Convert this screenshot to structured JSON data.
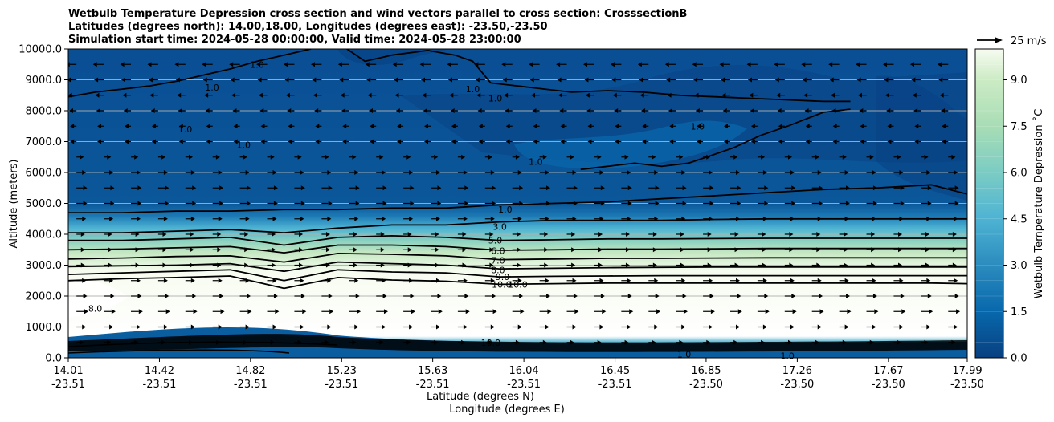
{
  "chart_data": {
    "type": "heatmap",
    "title_lines": [
      "Wetbulb Temperature Depression cross section and wind vectors parallel to cross section: CrosssectionB",
      "Latitudes (degrees north): 14.00,18.00, Longitudes (degrees east): -23.50,-23.50",
      "Simulation start time: 2024-05-28 00:00:00, Valid time: 2024-05-28 23:00:00"
    ],
    "ylabel": "Altitude (meters)",
    "xlabel_lines": [
      "Latitude (degrees N)",
      "Longitude (degrees E)"
    ],
    "ylim": [
      0,
      10000
    ],
    "y_ticks": [
      "0.0",
      "1000.0",
      "2000.0",
      "3000.0",
      "4000.0",
      "5000.0",
      "6000.0",
      "7000.0",
      "8000.0",
      "9000.0",
      "10000.0"
    ],
    "x_ticks": [
      {
        "lat": "14.01",
        "lon": "-23.51"
      },
      {
        "lat": "14.42",
        "lon": "-23.51"
      },
      {
        "lat": "14.82",
        "lon": "-23.51"
      },
      {
        "lat": "15.23",
        "lon": "-23.51"
      },
      {
        "lat": "15.63",
        "lon": "-23.51"
      },
      {
        "lat": "16.04",
        "lon": "-23.51"
      },
      {
        "lat": "16.45",
        "lon": "-23.51"
      },
      {
        "lat": "16.85",
        "lon": "-23.50"
      },
      {
        "lat": "17.26",
        "lon": "-23.50"
      },
      {
        "lat": "17.67",
        "lon": "-23.50"
      },
      {
        "lat": "17.99",
        "lon": "-23.50"
      }
    ],
    "colorbar": {
      "label": "Wetbulb Temperature Depression ˚C",
      "range": [
        0,
        10
      ],
      "levels": 20,
      "ticks": [
        "0.0",
        "1.5",
        "3.0",
        "4.5",
        "6.0",
        "7.5",
        "9.0"
      ],
      "low_color": "#084081",
      "high_color": "#f7fcf0"
    },
    "quiver_key": "25 m/s",
    "grid": "horizontal",
    "contour_labels": [
      {
        "text": "1.0",
        "x": 0.16,
        "y": 8750
      },
      {
        "text": "1.0",
        "x": 0.21,
        "y": 9500
      },
      {
        "text": "1.0",
        "x": 0.45,
        "y": 8700
      },
      {
        "text": "1.0",
        "x": 0.475,
        "y": 8400
      },
      {
        "text": "1.0",
        "x": 0.13,
        "y": 7400
      },
      {
        "text": "1.0",
        "x": 0.195,
        "y": 6900
      },
      {
        "text": "1.0",
        "x": 0.52,
        "y": 6350
      },
      {
        "text": "1.0",
        "x": 0.7,
        "y": 7500
      },
      {
        "text": "1.0",
        "x": 0.486,
        "y": 4800
      },
      {
        "text": "3.0",
        "x": 0.48,
        "y": 4250
      },
      {
        "text": "5.0",
        "x": 0.475,
        "y": 3800
      },
      {
        "text": "6.0",
        "x": 0.478,
        "y": 3470
      },
      {
        "text": "7.0",
        "x": 0.478,
        "y": 3150
      },
      {
        "text": "8.0",
        "x": 0.478,
        "y": 2850
      },
      {
        "text": "9.0",
        "x": 0.483,
        "y": 2620
      },
      {
        "text": "10.0",
        "x": 0.482,
        "y": 2380
      },
      {
        "text": "10.0",
        "x": 0.5,
        "y": 2380
      },
      {
        "text": "8.0",
        "x": 0.03,
        "y": 1600
      },
      {
        "text": "10.0",
        "x": 0.47,
        "y": 500
      },
      {
        "text": "1.0",
        "x": 0.685,
        "y": 120
      },
      {
        "text": "1.0",
        "x": 0.8,
        "y": 60
      }
    ],
    "contour_lines": [
      {
        "label": "1.0",
        "x": [
          0.0,
          0.06,
          0.12,
          0.18,
          0.24,
          0.3,
          0.36,
          0.42,
          0.48,
          0.54,
          0.6,
          0.66,
          0.72,
          0.78,
          0.84,
          0.9,
          0.96,
          1.0
        ],
        "y": [
          4700,
          4700,
          4750,
          4750,
          4800,
          4800,
          4850,
          4850,
          4950,
          5000,
          5050,
          5150,
          5250,
          5350,
          5450,
          5500,
          5600,
          5300
        ]
      },
      {
        "label": "3.0",
        "x": [
          0.0,
          0.06,
          0.12,
          0.18,
          0.24,
          0.3,
          0.36,
          0.42,
          0.48,
          0.54,
          0.6,
          0.66,
          0.72,
          0.78,
          0.84,
          0.9,
          0.96,
          1.0
        ],
        "y": [
          4050,
          4050,
          4100,
          4150,
          4050,
          4200,
          4300,
          4300,
          4400,
          4450,
          4450,
          4450,
          4480,
          4500,
          4500,
          4500,
          4500,
          4500
        ]
      },
      {
        "label": "5.0",
        "x": [
          0.0,
          0.06,
          0.12,
          0.18,
          0.24,
          0.3,
          0.36,
          0.42,
          0.48,
          0.54,
          0.6,
          0.66,
          0.72,
          0.78,
          0.84,
          0.9,
          0.96,
          1.0
        ],
        "y": [
          3800,
          3800,
          3850,
          3900,
          3650,
          3900,
          3950,
          3900,
          3800,
          3820,
          3850,
          3850,
          3860,
          3870,
          3870,
          3870,
          3870,
          3870
        ]
      },
      {
        "label": "6.0",
        "x": [
          0.0,
          0.06,
          0.12,
          0.18,
          0.24,
          0.3,
          0.36,
          0.42,
          0.48,
          0.54,
          0.6,
          0.66,
          0.72,
          0.78,
          0.84,
          0.9,
          0.96,
          1.0
        ],
        "y": [
          3500,
          3520,
          3560,
          3600,
          3400,
          3650,
          3650,
          3600,
          3480,
          3500,
          3520,
          3520,
          3530,
          3540,
          3540,
          3540,
          3540,
          3540
        ]
      },
      {
        "label": "7.0",
        "x": [
          0.0,
          0.06,
          0.12,
          0.18,
          0.24,
          0.3,
          0.36,
          0.42,
          0.48,
          0.54,
          0.6,
          0.66,
          0.72,
          0.78,
          0.84,
          0.9,
          0.96,
          1.0
        ],
        "y": [
          3200,
          3230,
          3280,
          3300,
          3100,
          3380,
          3350,
          3300,
          3180,
          3200,
          3220,
          3220,
          3230,
          3240,
          3240,
          3240,
          3240,
          3240
        ]
      },
      {
        "label": "8.0",
        "x": [
          0.0,
          0.06,
          0.12,
          0.18,
          0.24,
          0.3,
          0.36,
          0.42,
          0.48,
          0.54,
          0.6,
          0.66,
          0.72,
          0.78,
          0.84,
          0.9,
          0.96,
          1.0
        ],
        "y": [
          2950,
          2980,
          3000,
          3050,
          2800,
          3100,
          3050,
          3000,
          2880,
          2900,
          2920,
          2930,
          2940,
          2940,
          2940,
          2940,
          2940,
          2940
        ]
      },
      {
        "label": "9.0",
        "x": [
          0.0,
          0.06,
          0.12,
          0.18,
          0.24,
          0.3,
          0.36,
          0.42,
          0.48,
          0.54,
          0.6,
          0.66,
          0.72,
          0.78,
          0.84,
          0.9,
          0.96,
          1.0
        ],
        "y": [
          2700,
          2750,
          2800,
          2850,
          2500,
          2850,
          2780,
          2750,
          2620,
          2640,
          2650,
          2660,
          2660,
          2660,
          2660,
          2660,
          2660,
          2660
        ]
      },
      {
        "label": "10.0",
        "x": [
          0.0,
          0.06,
          0.12,
          0.18,
          0.24,
          0.3,
          0.36,
          0.42,
          0.48,
          0.54,
          0.6,
          0.66,
          0.72,
          0.78,
          0.84,
          0.9,
          0.96,
          1.0
        ],
        "y": [
          2500,
          2560,
          2600,
          2650,
          2250,
          2600,
          2520,
          2480,
          2380,
          2400,
          2420,
          2420,
          2420,
          2420,
          2420,
          2420,
          2420,
          2400
        ]
      },
      {
        "label": "1.0",
        "x": [
          0.31,
          0.33,
          0.36,
          0.4,
          0.43,
          0.45,
          0.47,
          0.5,
          0.53,
          0.56,
          0.6,
          0.64,
          0.68,
          0.72,
          0.76,
          0.8,
          0.84,
          0.87
        ],
        "y": [
          10000,
          9600,
          9800,
          9950,
          9800,
          9600,
          8900,
          8800,
          8700,
          8600,
          8650,
          8600,
          8500,
          8450,
          8400,
          8350,
          8300,
          8300
        ]
      },
      {
        "label": "1.0",
        "x": [
          0.0,
          0.03,
          0.06,
          0.09,
          0.12,
          0.15,
          0.18,
          0.21,
          0.24,
          0.27
        ],
        "y": [
          8450,
          8600,
          8700,
          8800,
          8950,
          9150,
          9350,
          9600,
          9800,
          10000
        ]
      },
      {
        "label": "1.0",
        "x": [
          0.57,
          0.6,
          0.63,
          0.66,
          0.69,
          0.72,
          0.74,
          0.77,
          0.8,
          0.84,
          0.87
        ],
        "y": [
          6100,
          6200,
          6300,
          6200,
          6300,
          6600,
          6800,
          7200,
          7500,
          7950,
          8050
        ]
      }
    ],
    "wind_rows_m": [
      9500,
      9000,
      8500,
      8000,
      7500,
      7000,
      6500,
      6000,
      5500,
      5000,
      4500,
      4000,
      3500,
      3000,
      2500,
      2000,
      1500,
      1000,
      500
    ],
    "wind_u_ms": [
      -6,
      -5,
      -4,
      -3,
      -2,
      -1,
      3,
      5,
      6,
      6,
      5,
      4,
      4,
      4,
      5,
      6,
      7,
      5,
      3
    ]
  }
}
